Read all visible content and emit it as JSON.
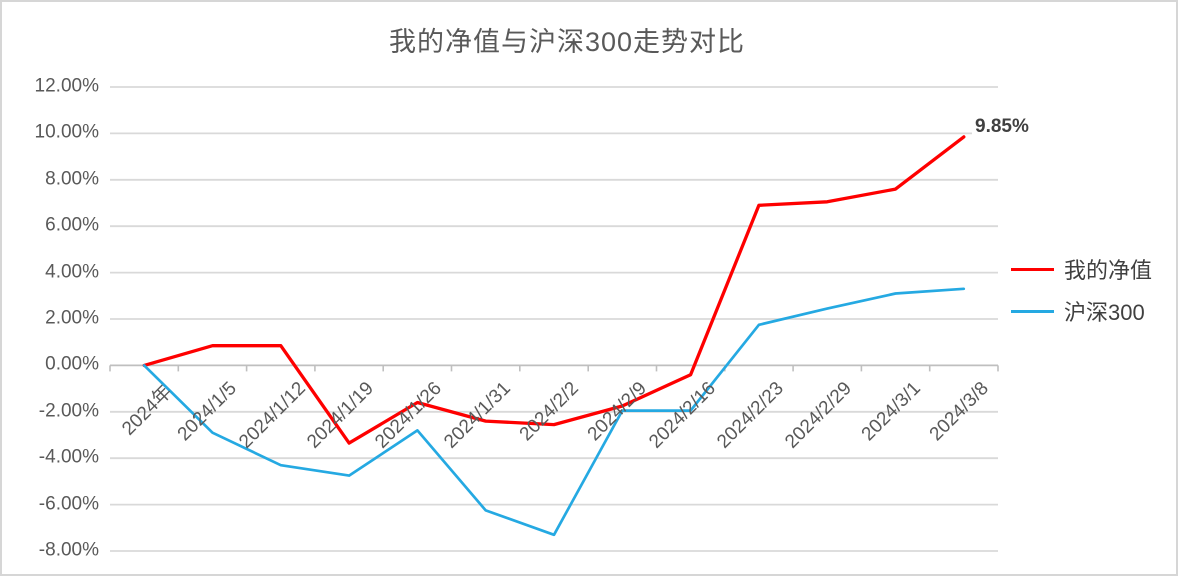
{
  "chart_data": {
    "type": "line",
    "title": "我的净值与沪深300走势对比",
    "categories": [
      "2024年",
      "2024/1/5",
      "2024/1/12",
      "2024/1/19",
      "2024/1/26",
      "2024/1/31",
      "2024/2/2",
      "2024/2/9",
      "2024/2/16",
      "2024/2/23",
      "2024/2/29",
      "2024/3/1",
      "2024/3/8"
    ],
    "series": [
      {
        "name": "我的净值",
        "color": "#fe0000",
        "values": [
          0.0,
          0.85,
          0.85,
          -3.35,
          -1.6,
          -2.4,
          -2.55,
          -1.75,
          -0.4,
          6.9,
          7.05,
          7.6,
          9.85
        ]
      },
      {
        "name": "沪深300",
        "color": "#25a9e2",
        "values": [
          0.0,
          -2.9,
          -4.3,
          -4.75,
          -2.8,
          -6.25,
          -7.3,
          -1.95,
          -1.95,
          1.75,
          2.45,
          3.1,
          3.3
        ]
      }
    ],
    "xlabel": "",
    "ylabel": "",
    "ylim": [
      -8,
      12
    ],
    "y_tick_step": 2,
    "y_tick_labels": [
      "12.00%",
      "10.00%",
      "8.00%",
      "6.00%",
      "4.00%",
      "2.00%",
      "0.00%",
      "-2.00%",
      "-4.00%",
      "-6.00%",
      "-8.00%"
    ],
    "grid": true,
    "legend_position": "right",
    "end_label": "9.85%"
  },
  "legend": {
    "items": [
      {
        "label": "我的净值",
        "color": "#fe0000"
      },
      {
        "label": "沪深300",
        "color": "#25a9e2"
      }
    ]
  },
  "colors": {
    "gridline": "#d9d9d9",
    "axis_line": "#bfbfbf",
    "title_text": "#595959",
    "tick_text": "#595959",
    "legend_text": "#404040",
    "data_label_text": "#404040"
  }
}
